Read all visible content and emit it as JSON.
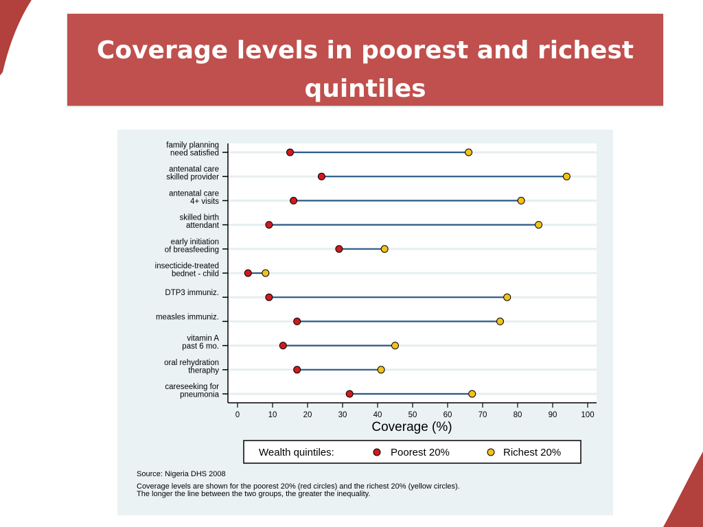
{
  "slide": {
    "title": "Coverage levels in poorest and richest quintiles",
    "accent_color": "#c0504d"
  },
  "chart_data": {
    "type": "dumbbell",
    "xlabel": "Coverage (%)",
    "xlim": [
      0,
      100
    ],
    "x_ticks": [
      0,
      10,
      20,
      30,
      40,
      50,
      60,
      70,
      80,
      90,
      100
    ],
    "grid": true,
    "categories": [
      [
        "family planning",
        "need satisfied"
      ],
      [
        "antenatal care",
        "skilled provider"
      ],
      [
        "antenatal care",
        "4+ visits"
      ],
      [
        "skilled birth",
        "attendant"
      ],
      [
        "early initiation",
        "of breasfeeding"
      ],
      [
        "insecticide-treated",
        "bednet - child"
      ],
      [
        "DTP3 immuniz."
      ],
      [
        "measles immuniz."
      ],
      [
        "vitamin A",
        "past 6 mo."
      ],
      [
        "oral rehydration",
        "theraphy"
      ],
      [
        "careseeking for",
        "pneumonia"
      ]
    ],
    "series": [
      {
        "name": "Poorest 20%",
        "color": "#d1191f",
        "values": [
          15,
          24,
          16,
          9,
          29,
          3,
          9,
          17,
          13,
          17,
          32
        ]
      },
      {
        "name": "Richest 20%",
        "color": "#f2c21b",
        "values": [
          66,
          94,
          81,
          86,
          42,
          8,
          77,
          75,
          45,
          41,
          67
        ]
      }
    ],
    "connector_color": "#2e5a86",
    "legend": {
      "title": "Wealth quintiles:",
      "position": "bottom"
    },
    "source": "Source: Nigeria DHS 2008",
    "notes": [
      "Coverage levels are shown for the poorest 20% (red circles) and the richest 20% (yellow circles).",
      "The longer the line between the two groups, the greater the inequality."
    ]
  }
}
